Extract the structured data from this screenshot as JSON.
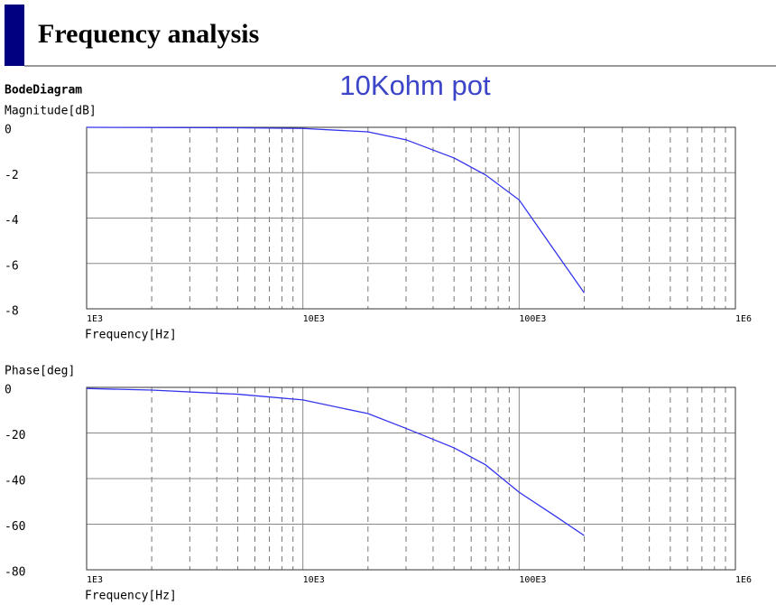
{
  "header": {
    "title": "Frequency analysis"
  },
  "chart_data": [
    {
      "type": "line",
      "title": "BodeDiagram",
      "annotation": "10Kohm pot",
      "ylabel": "Magnitude[dB]",
      "xlabel": "Frequency[Hz]",
      "xscale": "log",
      "grid": true,
      "xlim": [
        1000,
        1000000
      ],
      "xticks": [
        {
          "value": 1000,
          "label": "1E3"
        },
        {
          "value": 10000,
          "label": "10E3"
        },
        {
          "value": 100000,
          "label": "100E3"
        },
        {
          "value": 1000000,
          "label": "1E6"
        }
      ],
      "minor_xticks": [
        2000,
        3000,
        4000,
        5000,
        6000,
        7000,
        8000,
        9000,
        20000,
        30000,
        40000,
        50000,
        60000,
        70000,
        80000,
        90000,
        200000,
        300000,
        400000,
        500000,
        600000,
        700000,
        800000,
        900000
      ],
      "ylim": [
        -8,
        0
      ],
      "yticks": [
        -8,
        -6,
        -4,
        -2,
        0
      ],
      "x": [
        1000,
        2000,
        5000,
        10000,
        20000,
        30000,
        50000,
        70000,
        100000,
        150000,
        200000
      ],
      "series": [
        {
          "color": "#3333ee",
          "values": [
            0,
            -0.01,
            -0.02,
            -0.05,
            -0.2,
            -0.55,
            -1.35,
            -2.1,
            -3.2,
            -5.6,
            -7.3
          ]
        }
      ]
    },
    {
      "type": "line",
      "ylabel": "Phase[deg]",
      "xlabel": "Frequency[Hz]",
      "xscale": "log",
      "grid": true,
      "xlim": [
        1000,
        1000000
      ],
      "xticks": [
        {
          "value": 1000,
          "label": "1E3"
        },
        {
          "value": 10000,
          "label": "10E3"
        },
        {
          "value": 100000,
          "label": "100E3"
        },
        {
          "value": 1000000,
          "label": "1E6"
        }
      ],
      "minor_xticks": [
        2000,
        3000,
        4000,
        5000,
        6000,
        7000,
        8000,
        9000,
        20000,
        30000,
        40000,
        50000,
        60000,
        70000,
        80000,
        90000,
        200000,
        300000,
        400000,
        500000,
        600000,
        700000,
        800000,
        900000
      ],
      "ylim": [
        -80,
        0
      ],
      "yticks": [
        -80,
        -60,
        -40,
        -20,
        0
      ],
      "x": [
        1000,
        2000,
        5000,
        10000,
        20000,
        30000,
        50000,
        70000,
        100000,
        150000,
        200000
      ],
      "series": [
        {
          "color": "#3333ee",
          "values": [
            -0.5,
            -1.2,
            -3,
            -5.5,
            -11.5,
            -18,
            -26.5,
            -34,
            -46,
            -57,
            -65
          ]
        }
      ]
    }
  ]
}
